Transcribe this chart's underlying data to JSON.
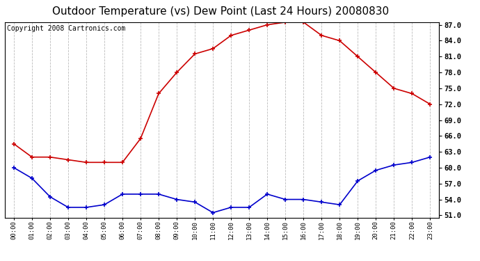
{
  "title": "Outdoor Temperature (vs) Dew Point (Last 24 Hours) 20080830",
  "copyright": "Copyright 2008 Cartronics.com",
  "hours": [
    "00:00",
    "01:00",
    "02:00",
    "03:00",
    "04:00",
    "05:00",
    "06:00",
    "07:00",
    "08:00",
    "09:00",
    "10:00",
    "11:00",
    "12:00",
    "13:00",
    "14:00",
    "15:00",
    "16:00",
    "17:00",
    "18:00",
    "19:00",
    "20:00",
    "21:00",
    "22:00",
    "23:00"
  ],
  "temp": [
    64.5,
    62.0,
    62.0,
    61.5,
    61.0,
    61.0,
    61.0,
    65.5,
    74.0,
    78.0,
    81.5,
    82.5,
    85.0,
    86.0,
    87.0,
    87.5,
    87.5,
    85.0,
    84.0,
    81.0,
    78.0,
    75.0,
    74.0,
    72.0
  ],
  "dew": [
    60.0,
    58.0,
    54.5,
    52.5,
    52.5,
    53.0,
    55.0,
    55.0,
    55.0,
    54.0,
    53.5,
    51.5,
    52.5,
    52.5,
    55.0,
    54.0,
    54.0,
    53.5,
    53.0,
    57.5,
    59.5,
    60.5,
    61.0,
    62.0
  ],
  "temp_color": "#cc0000",
  "dew_color": "#0000cc",
  "bg_color": "#ffffff",
  "plot_bg": "#ffffff",
  "grid_color": "#bbbbbb",
  "yticks_right": [
    51.0,
    54.0,
    57.0,
    60.0,
    63.0,
    66.0,
    69.0,
    72.0,
    75.0,
    78.0,
    81.0,
    84.0,
    87.0
  ],
  "title_fontsize": 11,
  "copyright_fontsize": 7
}
